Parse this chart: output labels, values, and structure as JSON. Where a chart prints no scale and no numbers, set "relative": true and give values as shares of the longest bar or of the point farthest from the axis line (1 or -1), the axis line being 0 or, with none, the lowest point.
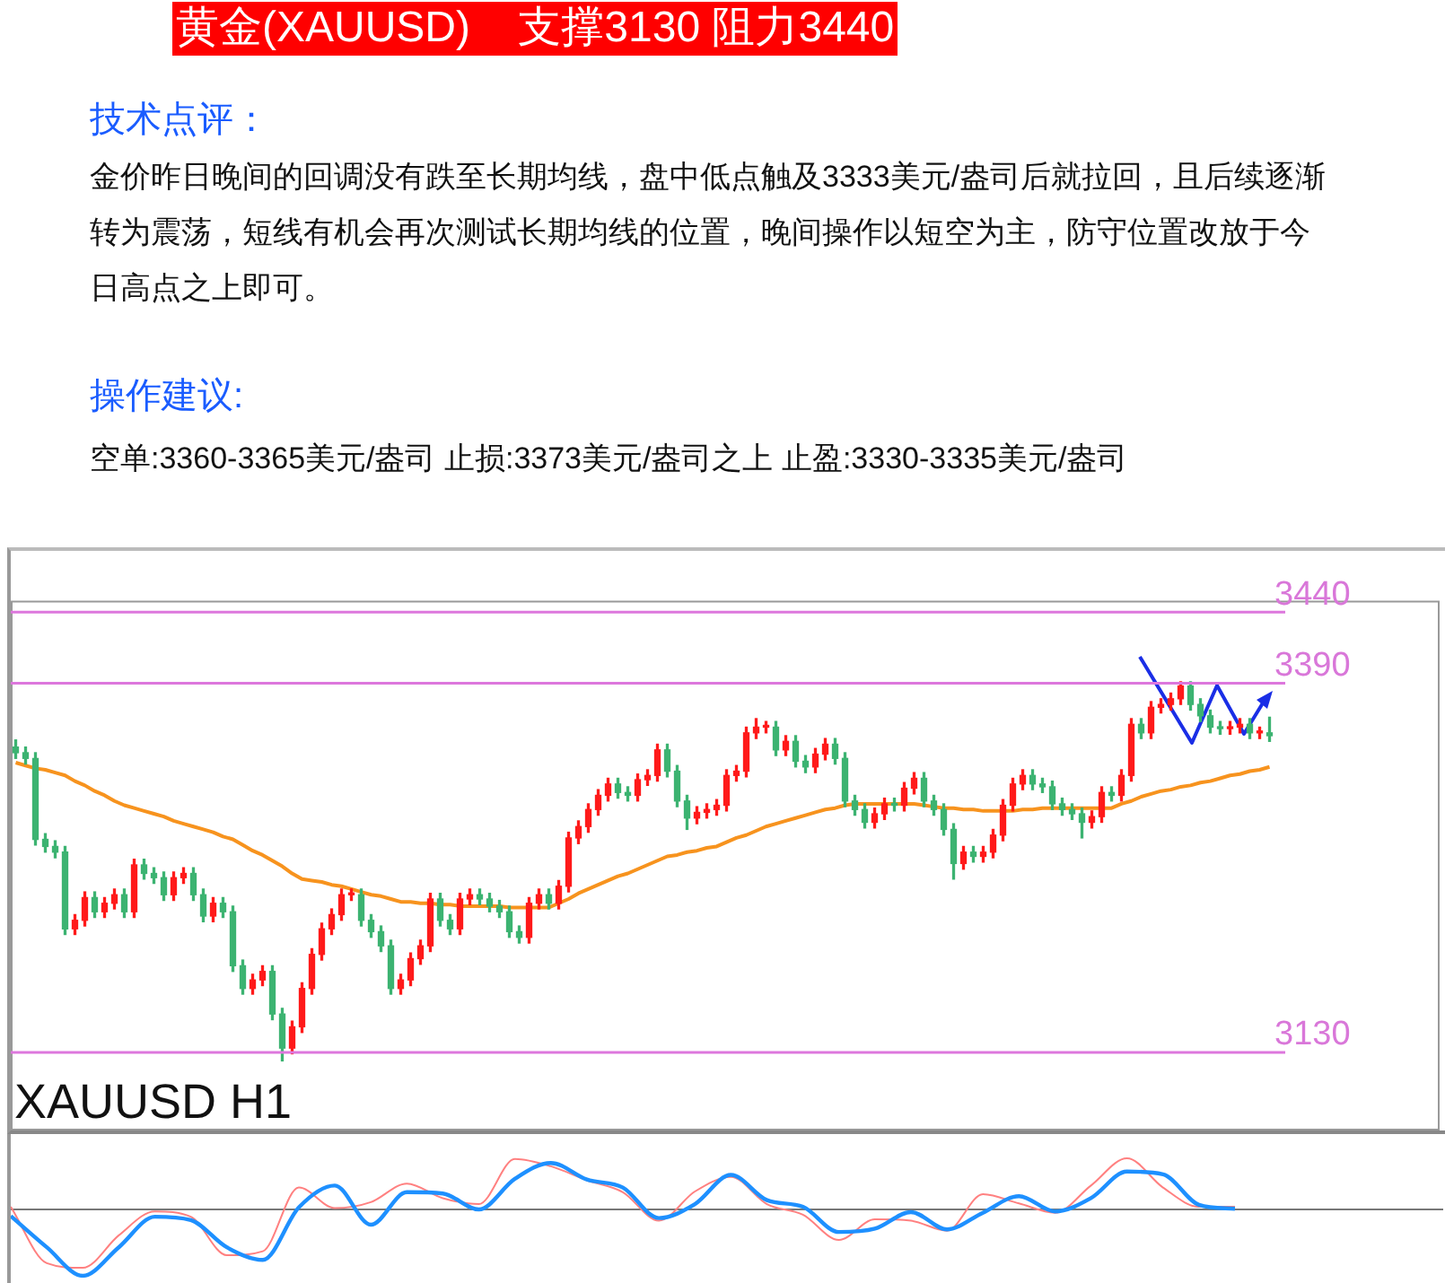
{
  "chart_data": [
    {
      "type": "candlestick",
      "title": "黄金(XAUUSD)    支撑3130 阻力3440",
      "annotations": [
        "技术点评：",
        "金价昨日晚间的回调没有跌至长期均线，盘中低点触及3333美元/盎司后就拉回，且后续逐渐转为震荡，短线有机会再次测试长期均线的位置，晚间操作以短空为主，防守位置改放于今日高点之上即可。",
        "操作建议:",
        "空单:3360-3365美元/盎司 止损:3373美元/盎司之上 止盈:3330-3335美元/盎司",
        "XAUUSD H1"
      ],
      "categories": [
        null,
        null,
        null,
        null,
        null,
        null,
        null,
        null,
        null,
        null,
        null,
        null,
        null,
        null,
        null,
        null,
        null,
        null,
        null,
        null,
        null,
        null,
        null,
        null,
        null,
        null,
        null,
        null,
        null,
        null,
        null,
        null,
        null,
        null,
        null,
        null,
        null,
        null,
        null,
        null,
        null,
        null,
        null,
        null,
        null,
        null,
        null,
        null,
        null,
        null,
        null,
        null,
        null,
        null,
        null,
        null,
        null,
        null,
        null,
        null,
        null,
        null,
        null,
        null,
        null,
        null,
        null,
        null,
        null,
        null,
        null,
        null,
        null,
        null,
        null,
        null,
        null,
        null,
        null,
        null,
        null,
        null,
        null,
        null,
        null,
        null,
        null,
        null,
        null,
        null,
        null,
        null,
        null,
        null,
        null,
        null,
        null,
        null,
        null,
        null,
        null,
        null,
        null,
        null,
        null,
        null,
        null,
        null,
        null,
        null,
        null,
        null,
        null,
        null,
        null,
        null,
        null,
        null,
        null,
        null,
        null,
        null,
        null,
        null,
        null,
        null,
        null,
        null
      ],
      "ohlc": [
        [
          3345,
          3350,
          3337,
          3341
        ],
        [
          3341,
          3345,
          3333,
          3337
        ],
        [
          3337,
          3341,
          3276,
          3280
        ],
        [
          3280,
          3284,
          3271,
          3275
        ],
        [
          3275,
          3279,
          3267,
          3271
        ],
        [
          3271,
          3275,
          3213,
          3217
        ],
        [
          3217,
          3227,
          3213,
          3223
        ],
        [
          3223,
          3243,
          3219,
          3239
        ],
        [
          3239,
          3243,
          3225,
          3229
        ],
        [
          3229,
          3239,
          3225,
          3235
        ],
        [
          3235,
          3245,
          3231,
          3241
        ],
        [
          3241,
          3245,
          3225,
          3229
        ],
        [
          3229,
          3266,
          3225,
          3262
        ],
        [
          3262,
          3266,
          3252,
          3256
        ],
        [
          3256,
          3260,
          3249,
          3253
        ],
        [
          3253,
          3257,
          3237,
          3241
        ],
        [
          3241,
          3257,
          3237,
          3253
        ],
        [
          3253,
          3260,
          3249,
          3256
        ],
        [
          3256,
          3260,
          3237,
          3241
        ],
        [
          3241,
          3245,
          3222,
          3226
        ],
        [
          3226,
          3239,
          3222,
          3235
        ],
        [
          3235,
          3239,
          3225,
          3229
        ],
        [
          3229,
          3233,
          3187,
          3191
        ],
        [
          3191,
          3195,
          3171,
          3175
        ],
        [
          3175,
          3185,
          3171,
          3181
        ],
        [
          3181,
          3191,
          3177,
          3187
        ],
        [
          3187,
          3191,
          3153,
          3157
        ],
        [
          3157,
          3161,
          3124,
          3133
        ],
        [
          3133,
          3152,
          3129,
          3148
        ],
        [
          3148,
          3179,
          3144,
          3175
        ],
        [
          3175,
          3203,
          3171,
          3199
        ],
        [
          3199,
          3221,
          3195,
          3217
        ],
        [
          3217,
          3231,
          3213,
          3227
        ],
        [
          3227,
          3245,
          3223,
          3241
        ],
        [
          3241,
          3245,
          3237,
          3241
        ],
        [
          3241,
          3245,
          3219,
          3223
        ],
        [
          3223,
          3227,
          3211,
          3215
        ],
        [
          3215,
          3219,
          3201,
          3205
        ],
        [
          3205,
          3209,
          3171,
          3175
        ],
        [
          3175,
          3185,
          3171,
          3181
        ],
        [
          3181,
          3200,
          3177,
          3196
        ],
        [
          3196,
          3209,
          3192,
          3205
        ],
        [
          3205,
          3242,
          3201,
          3238
        ],
        [
          3238,
          3242,
          3219,
          3223
        ],
        [
          3223,
          3227,
          3213,
          3217
        ],
        [
          3217,
          3242,
          3213,
          3238
        ],
        [
          3238,
          3245,
          3234,
          3241
        ],
        [
          3241,
          3245,
          3234,
          3238
        ],
        [
          3238,
          3242,
          3229,
          3233
        ],
        [
          3233,
          3237,
          3225,
          3229
        ],
        [
          3229,
          3233,
          3211,
          3215
        ],
        [
          3215,
          3219,
          3207,
          3211
        ],
        [
          3211,
          3239,
          3207,
          3235
        ],
        [
          3235,
          3245,
          3231,
          3241
        ],
        [
          3241,
          3245,
          3231,
          3235
        ],
        [
          3235,
          3251,
          3231,
          3247
        ],
        [
          3247,
          3285,
          3243,
          3281
        ],
        [
          3281,
          3293,
          3277,
          3289
        ],
        [
          3289,
          3305,
          3285,
          3301
        ],
        [
          3301,
          3315,
          3297,
          3311
        ],
        [
          3311,
          3323,
          3307,
          3319
        ],
        [
          3319,
          3323,
          3309,
          3313
        ],
        [
          3313,
          3317,
          3307,
          3311
        ],
        [
          3311,
          3326,
          3307,
          3322
        ],
        [
          3322,
          3329,
          3318,
          3325
        ],
        [
          3325,
          3347,
          3321,
          3343
        ],
        [
          3343,
          3347,
          3324,
          3328
        ],
        [
          3328,
          3332,
          3303,
          3307
        ],
        [
          3307,
          3311,
          3287,
          3295
        ],
        [
          3295,
          3303,
          3291,
          3299
        ],
        [
          3299,
          3305,
          3295,
          3301
        ],
        [
          3301,
          3308,
          3297,
          3304
        ],
        [
          3304,
          3329,
          3300,
          3325
        ],
        [
          3325,
          3332,
          3321,
          3328
        ],
        [
          3328,
          3359,
          3324,
          3355
        ],
        [
          3355,
          3365,
          3351,
          3359
        ],
        [
          3359,
          3363,
          3355,
          3359
        ],
        [
          3359,
          3363,
          3339,
          3343
        ],
        [
          3343,
          3353,
          3339,
          3349
        ],
        [
          3349,
          3353,
          3331,
          3335
        ],
        [
          3335,
          3339,
          3327,
          3331
        ],
        [
          3331,
          3344,
          3327,
          3340
        ],
        [
          3340,
          3351,
          3336,
          3347
        ],
        [
          3347,
          3351,
          3333,
          3337
        ],
        [
          3337,
          3341,
          3303,
          3307
        ],
        [
          3307,
          3311,
          3297,
          3301
        ],
        [
          3301,
          3305,
          3288,
          3292
        ],
        [
          3292,
          3302,
          3288,
          3298
        ],
        [
          3298,
          3309,
          3294,
          3305
        ],
        [
          3305,
          3309,
          3300,
          3304
        ],
        [
          3304,
          3320,
          3300,
          3316
        ],
        [
          3316,
          3327,
          3312,
          3323
        ],
        [
          3323,
          3327,
          3303,
          3307
        ],
        [
          3307,
          3311,
          3297,
          3301
        ],
        [
          3301,
          3305,
          3283,
          3287
        ],
        [
          3287,
          3291,
          3252,
          3263
        ],
        [
          3263,
          3275,
          3259,
          3271
        ],
        [
          3271,
          3275,
          3264,
          3268
        ],
        [
          3268,
          3275,
          3264,
          3271
        ],
        [
          3271,
          3287,
          3267,
          3283
        ],
        [
          3283,
          3308,
          3279,
          3304
        ],
        [
          3304,
          3323,
          3300,
          3319
        ],
        [
          3319,
          3329,
          3315,
          3325
        ],
        [
          3325,
          3329,
          3315,
          3319
        ],
        [
          3319,
          3323,
          3313,
          3317
        ],
        [
          3317,
          3321,
          3301,
          3305
        ],
        [
          3305,
          3309,
          3297,
          3301
        ],
        [
          3301,
          3305,
          3294,
          3298
        ],
        [
          3298,
          3302,
          3281,
          3292
        ],
        [
          3292,
          3300,
          3288,
          3296
        ],
        [
          3296,
          3317,
          3292,
          3313
        ],
        [
          3313,
          3317,
          3307,
          3311
        ],
        [
          3311,
          3329,
          3307,
          3325
        ],
        [
          3325,
          3365,
          3321,
          3361
        ],
        [
          3361,
          3365,
          3351,
          3355
        ],
        [
          3355,
          3377,
          3351,
          3373
        ],
        [
          3373,
          3379,
          3369,
          3375
        ],
        [
          3375,
          3383,
          3371,
          3379
        ],
        [
          3379,
          3391,
          3375,
          3388
        ],
        [
          3388,
          3391,
          3371,
          3375
        ],
        [
          3375,
          3379,
          3363,
          3367
        ],
        [
          3367,
          3371,
          3355,
          3359
        ],
        [
          3359,
          3363,
          3354,
          3358
        ],
        [
          3358,
          3363,
          3354,
          3359
        ],
        [
          3359,
          3365,
          3355,
          3361
        ],
        [
          3361,
          3365,
          3351,
          3355
        ],
        [
          3355,
          3359,
          3351,
          3355
        ],
        [
          3355,
          3366,
          3349,
          3353
        ]
      ],
      "colors": [
        "#3cb371",
        "#3cb371",
        "#3cb371",
        "#3cb371",
        "#3cb371",
        "#3cb371",
        "#ff1a1a",
        "#ff1a1a",
        "#3cb371",
        "#ff1a1a",
        "#ff1a1a",
        "#3cb371",
        "#ff1a1a",
        "#3cb371",
        "#3cb371",
        "#3cb371",
        "#ff1a1a",
        "#ff1a1a",
        "#3cb371",
        "#3cb371",
        "#ff1a1a",
        "#3cb371",
        "#3cb371",
        "#3cb371",
        "#ff1a1a",
        "#ff1a1a",
        "#3cb371",
        "#3cb371",
        "#ff1a1a",
        "#ff1a1a",
        "#ff1a1a",
        "#ff1a1a",
        "#ff1a1a",
        "#ff1a1a",
        "#ff1a1a",
        "#3cb371",
        "#3cb371",
        "#3cb371",
        "#3cb371",
        "#ff1a1a",
        "#ff1a1a",
        "#ff1a1a",
        "#ff1a1a",
        "#3cb371",
        "#3cb371",
        "#ff1a1a",
        "#ff1a1a",
        "#3cb371",
        "#3cb371",
        "#3cb371",
        "#3cb371",
        "#3cb371",
        "#ff1a1a",
        "#ff1a1a",
        "#3cb371",
        "#ff1a1a",
        "#ff1a1a",
        "#ff1a1a",
        "#ff1a1a",
        "#ff1a1a",
        "#ff1a1a",
        "#3cb371",
        "#3cb371",
        "#ff1a1a",
        "#ff1a1a",
        "#ff1a1a",
        "#3cb371",
        "#3cb371",
        "#3cb371",
        "#ff1a1a",
        "#ff1a1a",
        "#ff1a1a",
        "#ff1a1a",
        "#ff1a1a",
        "#ff1a1a",
        "#ff1a1a",
        "#ff1a1a",
        "#3cb371",
        "#ff1a1a",
        "#3cb371",
        "#3cb371",
        "#ff1a1a",
        "#ff1a1a",
        "#3cb371",
        "#3cb371",
        "#3cb371",
        "#3cb371",
        "#ff1a1a",
        "#ff1a1a",
        "#3cb371",
        "#ff1a1a",
        "#ff1a1a",
        "#3cb371",
        "#3cb371",
        "#3cb371",
        "#3cb371",
        "#ff1a1a",
        "#3cb371",
        "#ff1a1a",
        "#ff1a1a",
        "#ff1a1a",
        "#ff1a1a",
        "#ff1a1a",
        "#3cb371",
        "#3cb371",
        "#3cb371",
        "#3cb371",
        "#3cb371",
        "#3cb371",
        "#ff1a1a",
        "#ff1a1a",
        "#3cb371",
        "#ff1a1a",
        "#ff1a1a",
        "#3cb371",
        "#ff1a1a",
        "#ff1a1a",
        "#ff1a1a",
        "#ff1a1a",
        "#3cb371",
        "#3cb371",
        "#3cb371",
        "#3cb371",
        "#ff1a1a",
        "#ff1a1a",
        "#3cb371",
        "#ff1a1a",
        "#3cb371"
      ],
      "series": [
        {
          "type": "line",
          "color": "#f7931e",
          "values": [
            3334,
            3332,
            3330,
            3329,
            3327,
            3325,
            3321,
            3318,
            3314,
            3311,
            3307,
            3304,
            3302,
            3300,
            3298,
            3296,
            3293,
            3291,
            3289,
            3287,
            3285,
            3282,
            3280,
            3276,
            3272,
            3269,
            3265,
            3261,
            3256,
            3252,
            3251,
            3250,
            3248,
            3247,
            3245,
            3243,
            3241,
            3240,
            3238,
            3236,
            3236,
            3235,
            3235,
            3234,
            3234,
            3233,
            3233,
            3233,
            3233,
            3233,
            3232,
            3232,
            3232,
            3232,
            3232,
            3235,
            3238,
            3242,
            3245,
            3248,
            3251,
            3254,
            3256,
            3259,
            3262,
            3265,
            3268,
            3269,
            3271,
            3272,
            3274,
            3275,
            3278,
            3281,
            3283,
            3286,
            3289,
            3291,
            3293,
            3295,
            3297,
            3299,
            3301,
            3302,
            3304,
            3305,
            3305,
            3305,
            3305,
            3305,
            3305,
            3305,
            3304,
            3303,
            3302,
            3302,
            3301,
            3301,
            3300,
            3300,
            3300,
            3300,
            3301,
            3301,
            3302,
            3302,
            3302,
            3302,
            3302,
            3302,
            3302,
            3302,
            3305,
            3307,
            3310,
            3312,
            3314,
            3315,
            3317,
            3318,
            3320,
            3321,
            3323,
            3325,
            3326,
            3328,
            3329,
            3331
          ]
        }
      ],
      "ylim": [
        3075,
        3448
      ],
      "yticks": [
        3130,
        3390,
        3440
      ],
      "tick_labels": "y",
      "ref_lines": [
        {
          "axis": "y",
          "value": 3440,
          "color": "#dd77dd"
        },
        {
          "axis": "y",
          "value": 3390,
          "color": "#dd77dd"
        },
        {
          "axis": "y",
          "value": 3130,
          "color": "#dd77dd"
        }
      ],
      "legend": false,
      "grid": false
    },
    {
      "type": "line",
      "relative": true,
      "tick_labels": false,
      "legend": false,
      "grid": false,
      "categories": [
        null,
        null,
        null,
        null,
        null,
        null,
        null,
        null,
        null,
        null,
        null,
        null,
        null,
        null,
        null,
        null,
        null,
        null,
        null,
        null,
        null,
        null,
        null,
        null,
        null,
        null,
        null,
        null,
        null,
        null,
        null,
        null,
        null,
        null,
        null
      ],
      "series": [
        {
          "color": "#1e90ff",
          "values": [
            -0.1,
            -0.57,
            -1,
            -0.57,
            -0.11,
            -0.16,
            -0.57,
            -0.76,
            0.03,
            0.36,
            -0.23,
            0.26,
            0.24,
            0,
            0.46,
            0.7,
            0.45,
            0.33,
            -0.13,
            0.08,
            0.52,
            0.14,
            0.04,
            -0.34,
            -0.29,
            -0.04,
            -0.3,
            -0.05,
            0.2,
            -0.03,
            0.17,
            0.57,
            0.53,
            0.07,
            0.01
          ]
        },
        {
          "color": "#ff8080",
          "values": [
            0.04,
            -0.81,
            -0.88,
            -0.39,
            -0.03,
            -0.11,
            -0.69,
            -0.63,
            0.33,
            0.02,
            0.11,
            0.39,
            0.17,
            0.08,
            0.76,
            0.65,
            0.44,
            0.26,
            -0.17,
            0.27,
            0.49,
            0.08,
            -0.08,
            -0.46,
            -0.15,
            -0.17,
            -0.32,
            0.23,
            0.09,
            -0.05,
            0.36,
            0.77,
            0.33,
            0.04,
            0.04
          ]
        }
      ]
    }
  ]
}
